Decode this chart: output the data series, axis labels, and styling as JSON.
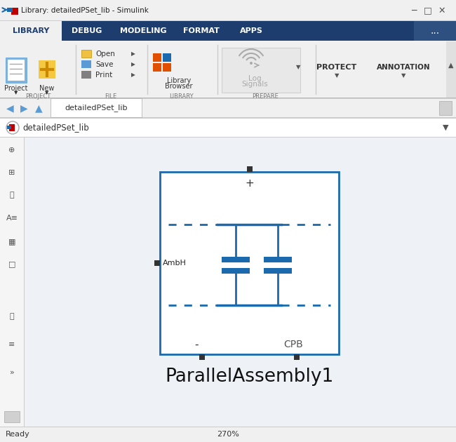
{
  "title_bar": "Library: detailedPSet_lib - Simulink",
  "title_bar_bg": "#f0f0f0",
  "title_bar_fg": "#222222",
  "window_border": "#cccccc",
  "ribbon_tabs": [
    "LIBRARY",
    "DEBUG",
    "MODELING",
    "FORMAT",
    "APPS",
    "..."
  ],
  "ribbon_bg": "#1c3d6e",
  "active_tab_bg": "#f0f0f0",
  "active_tab_fg": "#1c3d6e",
  "toolbar_bg": "#f0f0f0",
  "canvas_bg": "#eef2f7",
  "block_border_color": "#1a6aad",
  "block_label": "ParallelAssembly1",
  "block_sublabel_left": "-",
  "block_sublabel_right": "CPB",
  "block_toplabel": "+",
  "block_port_label": "AmbH",
  "breadcrumb": "detailedPSet_lib",
  "status_left": "Ready",
  "status_center": "270%",
  "window_bg": "#f0f0f0",
  "canvas_inner_bg": "#eef2f7"
}
